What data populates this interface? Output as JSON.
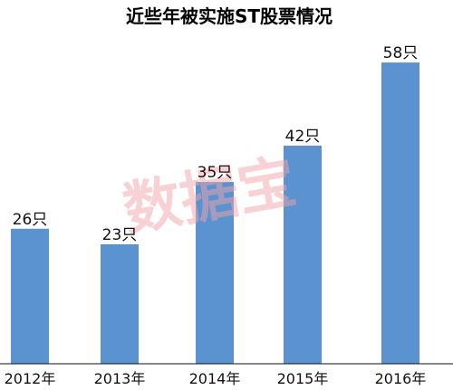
{
  "chart_data": {
    "type": "bar",
    "title": "近些年被实施ST股票情况",
    "categories": [
      "2012年",
      "2013年",
      "2014年",
      "2015年",
      "2016年"
    ],
    "values": [
      26,
      23,
      35,
      42,
      58
    ],
    "value_labels": [
      "26只",
      "23只",
      "35只",
      "42只",
      "58只"
    ],
    "ylim": [
      0,
      60
    ],
    "grid": false,
    "legend": "none",
    "bar_color": "#5b92d0"
  },
  "watermark": {
    "text": "数据宝",
    "color": "#f0a4aa"
  }
}
